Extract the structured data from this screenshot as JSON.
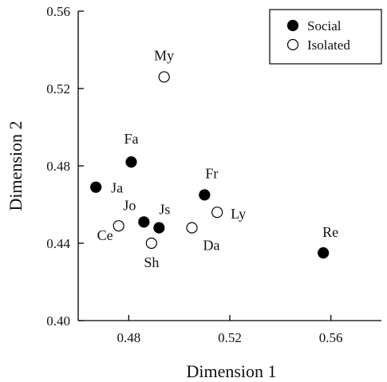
{
  "chart_data": {
    "type": "scatter",
    "xlabel": "Dimension 1",
    "ylabel": "Dimension 2",
    "xlim": [
      0.46,
      0.58
    ],
    "ylim": [
      0.4,
      0.56
    ],
    "xticks": [
      "0.48",
      "0.52",
      "0.56"
    ],
    "xtick_values": [
      0.48,
      0.52,
      0.56
    ],
    "yticks": [
      "0.40",
      "0.44",
      "0.48",
      "0.52",
      "0.56"
    ],
    "ytick_values": [
      0.4,
      0.44,
      0.48,
      0.52,
      0.56
    ],
    "grid": false,
    "legend_position": "top-right",
    "series": [
      {
        "name": "Social",
        "marker": "filled-circle",
        "points": [
          {
            "label": "Fa",
            "x": 0.481,
            "y": 0.482
          },
          {
            "label": "Ja",
            "x": 0.467,
            "y": 0.469
          },
          {
            "label": "Fr",
            "x": 0.51,
            "y": 0.465
          },
          {
            "label": "Jo",
            "x": 0.486,
            "y": 0.451
          },
          {
            "label": "Js",
            "x": 0.492,
            "y": 0.448
          },
          {
            "label": "Re",
            "x": 0.557,
            "y": 0.435
          }
        ]
      },
      {
        "name": "Isolated",
        "marker": "open-circle",
        "points": [
          {
            "label": "My",
            "x": 0.494,
            "y": 0.526
          },
          {
            "label": "Ly",
            "x": 0.515,
            "y": 0.456
          },
          {
            "label": "Ce",
            "x": 0.476,
            "y": 0.449
          },
          {
            "label": "Da",
            "x": 0.505,
            "y": 0.448
          },
          {
            "label": "Sh",
            "x": 0.489,
            "y": 0.44
          }
        ]
      }
    ]
  }
}
